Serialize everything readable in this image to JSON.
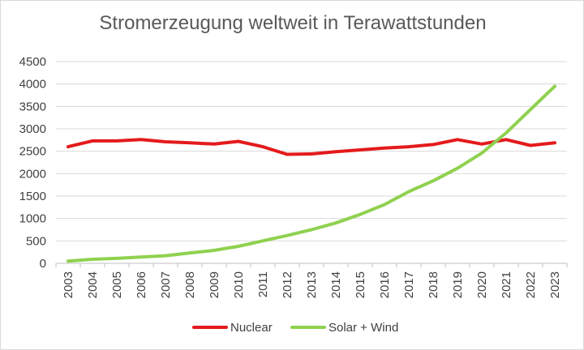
{
  "chart_data": {
    "type": "line",
    "title": "Stromerzeugung weltweit in Terawattstunden",
    "xlabel": "",
    "ylabel": "",
    "ylim": [
      0,
      4500
    ],
    "yticks": [
      0,
      500,
      1000,
      1500,
      2000,
      2500,
      3000,
      3500,
      4000,
      4500
    ],
    "grid": true,
    "legend": "bottom",
    "categories": [
      "2003",
      "2004",
      "2005",
      "2006",
      "2007",
      "2008",
      "2009",
      "2010",
      "2011",
      "2012",
      "2013",
      "2014",
      "2015",
      "2016",
      "2017",
      "2018",
      "2019",
      "2020",
      "2021",
      "2022",
      "2023"
    ],
    "series": [
      {
        "name": "Nuclear",
        "color": "#e41a1c",
        "values": [
          2600,
          2730,
          2730,
          2760,
          2710,
          2690,
          2660,
          2720,
          2600,
          2430,
          2440,
          2490,
          2530,
          2570,
          2600,
          2650,
          2760,
          2660,
          2760,
          2630,
          2690
        ]
      },
      {
        "name": "Solar + Wind",
        "color": "#8fd14f",
        "values": [
          50,
          90,
          110,
          140,
          170,
          230,
          290,
          380,
          500,
          620,
          750,
          900,
          1090,
          1310,
          1600,
          1840,
          2120,
          2460,
          2910,
          3430,
          3950
        ]
      }
    ]
  }
}
